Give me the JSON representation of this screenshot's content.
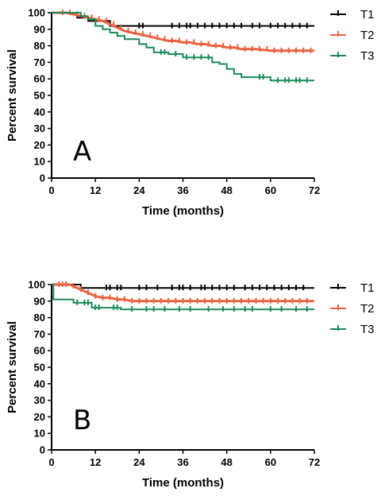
{
  "colors": {
    "T1": "#000000",
    "T2": "#e8623f",
    "T3": "#1a8a5a"
  },
  "chart_data": [
    {
      "type": "line",
      "panel_label": "A",
      "xlabel": "Time (months)",
      "ylabel": "Percent survival",
      "xlim": [
        0,
        72
      ],
      "ylim": [
        0,
        100
      ],
      "x_ticks": [
        0,
        12,
        24,
        36,
        48,
        60,
        72
      ],
      "y_ticks": [
        0,
        10,
        20,
        30,
        40,
        50,
        60,
        70,
        80,
        90,
        100
      ],
      "legend": "right",
      "series": [
        {
          "name": "T1",
          "color": "#000000",
          "points": [
            [
              0,
              100
            ],
            [
              7,
              100
            ],
            [
              7,
              97
            ],
            [
              10,
              97
            ],
            [
              10,
              95
            ],
            [
              16,
              95
            ],
            [
              16,
              92
            ],
            [
              72,
              92
            ]
          ],
          "censored": [
            24,
            25,
            33,
            35,
            37,
            38,
            40,
            42,
            44,
            46,
            48,
            50,
            52,
            55,
            57,
            60,
            62,
            64,
            66,
            68,
            70
          ]
        },
        {
          "name": "T2",
          "color": "#e8623f",
          "points": [
            [
              0,
              100
            ],
            [
              4,
              100
            ],
            [
              6,
              99
            ],
            [
              8,
              98
            ],
            [
              10,
              97
            ],
            [
              12,
              96
            ],
            [
              14,
              95
            ],
            [
              16,
              93
            ],
            [
              18,
              91
            ],
            [
              20,
              89
            ],
            [
              22,
              88
            ],
            [
              24,
              87
            ],
            [
              26,
              86
            ],
            [
              28,
              85
            ],
            [
              30,
              84
            ],
            [
              32,
              83
            ],
            [
              34,
              83
            ],
            [
              36,
              82
            ],
            [
              38,
              82
            ],
            [
              40,
              81
            ],
            [
              42,
              81
            ],
            [
              44,
              80
            ],
            [
              46,
              80
            ],
            [
              48,
              79
            ],
            [
              50,
              79
            ],
            [
              52,
              78
            ],
            [
              56,
              78
            ],
            [
              60,
              77
            ],
            [
              64,
              77
            ],
            [
              72,
              77
            ]
          ],
          "censored": [
            3,
            5,
            7,
            9,
            11,
            13,
            15,
            17,
            19,
            21,
            23,
            25,
            27,
            29,
            31,
            33,
            35,
            37,
            39,
            41,
            43,
            45,
            47,
            49,
            51,
            53,
            55,
            57,
            59,
            61,
            63,
            65,
            67,
            69,
            71
          ]
        },
        {
          "name": "T3",
          "color": "#1a8a5a",
          "points": [
            [
              0,
              100
            ],
            [
              8,
              100
            ],
            [
              8,
              98
            ],
            [
              10,
              98
            ],
            [
              10,
              96
            ],
            [
              12,
              96
            ],
            [
              12,
              92
            ],
            [
              14,
              92
            ],
            [
              14,
              90
            ],
            [
              16,
              90
            ],
            [
              16,
              88
            ],
            [
              18,
              88
            ],
            [
              18,
              86
            ],
            [
              20,
              86
            ],
            [
              20,
              84
            ],
            [
              24,
              84
            ],
            [
              24,
              81
            ],
            [
              26,
              81
            ],
            [
              26,
              79
            ],
            [
              28,
              79
            ],
            [
              28,
              76
            ],
            [
              32,
              76
            ],
            [
              32,
              75
            ],
            [
              36,
              75
            ],
            [
              36,
              73
            ],
            [
              44,
              73
            ],
            [
              44,
              70
            ],
            [
              46,
              70
            ],
            [
              46,
              69
            ],
            [
              48,
              69
            ],
            [
              48,
              66
            ],
            [
              50,
              66
            ],
            [
              50,
              63
            ],
            [
              52,
              63
            ],
            [
              52,
              61
            ],
            [
              60,
              61
            ],
            [
              60,
              59
            ],
            [
              72,
              59
            ]
          ],
          "censored": [
            30,
            31,
            34,
            37,
            39,
            41,
            43,
            57,
            58,
            62,
            64,
            65,
            67,
            68,
            70
          ]
        }
      ]
    },
    {
      "type": "line",
      "panel_label": "B",
      "xlabel": "Time (months)",
      "ylabel": "Percent survival",
      "xlim": [
        0,
        72
      ],
      "ylim": [
        0,
        100
      ],
      "x_ticks": [
        0,
        12,
        24,
        36,
        48,
        60,
        72
      ],
      "y_ticks": [
        0,
        10,
        20,
        30,
        40,
        50,
        60,
        70,
        80,
        90,
        100
      ],
      "legend": "right",
      "series": [
        {
          "name": "T1",
          "color": "#000000",
          "points": [
            [
              0,
              100
            ],
            [
              8,
              100
            ],
            [
              8,
              98
            ],
            [
              72,
              98
            ]
          ],
          "censored": [
            15,
            16,
            18,
            19,
            24,
            26,
            29,
            33,
            35,
            36,
            38,
            41,
            42,
            44,
            46,
            48,
            50,
            53,
            55,
            57,
            59,
            61,
            63,
            65,
            67,
            69
          ]
        },
        {
          "name": "T2",
          "color": "#e8623f",
          "points": [
            [
              0,
              100
            ],
            [
              5,
              100
            ],
            [
              6,
              99
            ],
            [
              8,
              97
            ],
            [
              10,
              95
            ],
            [
              12,
              93
            ],
            [
              14,
              92
            ],
            [
              16,
              92
            ],
            [
              18,
              91
            ],
            [
              20,
              91
            ],
            [
              22,
              90
            ],
            [
              72,
              90
            ]
          ],
          "censored": [
            2,
            3,
            4,
            6,
            8,
            10,
            12,
            14,
            16,
            18,
            20,
            22,
            24,
            26,
            28,
            30,
            32,
            34,
            36,
            38,
            40,
            42,
            44,
            46,
            48,
            50,
            52,
            54,
            56,
            58,
            60,
            62,
            64,
            66,
            68,
            70
          ]
        },
        {
          "name": "T3",
          "color": "#1a8a5a",
          "points": [
            [
              0,
              100
            ],
            [
              0.5,
              100
            ],
            [
              0.5,
              91
            ],
            [
              6,
              91
            ],
            [
              6,
              89
            ],
            [
              11,
              89
            ],
            [
              11,
              86
            ],
            [
              19,
              86
            ],
            [
              19,
              85
            ],
            [
              72,
              85
            ]
          ],
          "censored": [
            7,
            9,
            10,
            12,
            13,
            17,
            18,
            22,
            26,
            28,
            31,
            35,
            38,
            43,
            47,
            50,
            53,
            55,
            60,
            63,
            67,
            70
          ]
        }
      ]
    }
  ]
}
